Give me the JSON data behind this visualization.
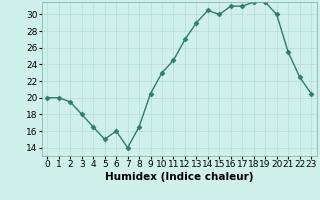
{
  "x": [
    0,
    1,
    2,
    3,
    4,
    5,
    6,
    7,
    8,
    9,
    10,
    11,
    12,
    13,
    14,
    15,
    16,
    17,
    18,
    19,
    20,
    21,
    22,
    23
  ],
  "y": [
    20,
    20,
    19.5,
    18,
    16.5,
    15,
    16,
    14,
    16.5,
    20.5,
    23,
    24.5,
    27,
    29,
    30.5,
    30,
    31,
    31,
    31.5,
    31.5,
    30,
    25.5,
    22.5,
    20.5
  ],
  "line_color": "#2e7d6e",
  "marker": "D",
  "marker_size": 2.5,
  "bg_color": "#cff0eb",
  "grid_color": "#b8ddd8",
  "xlabel": "Humidex (Indice chaleur)",
  "xlim": [
    -0.5,
    23.5
  ],
  "ylim": [
    13,
    31.5
  ],
  "yticks": [
    14,
    16,
    18,
    20,
    22,
    24,
    26,
    28,
    30
  ],
  "xticks": [
    0,
    1,
    2,
    3,
    4,
    5,
    6,
    7,
    8,
    9,
    10,
    11,
    12,
    13,
    14,
    15,
    16,
    17,
    18,
    19,
    20,
    21,
    22,
    23
  ],
  "xlabel_fontsize": 7.5,
  "tick_fontsize": 6.5,
  "line_width": 1.0
}
